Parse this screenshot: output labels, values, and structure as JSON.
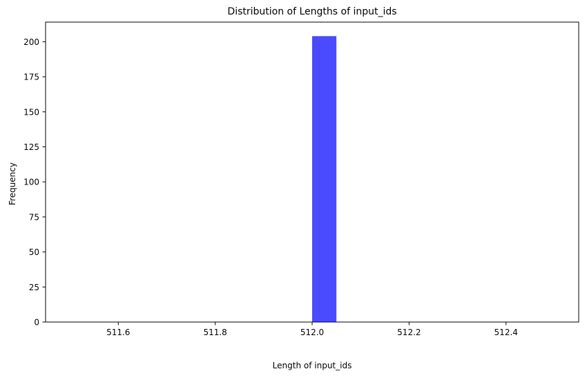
{
  "chart_data": {
    "type": "bar",
    "title": "Distribution of Lengths of input_ids",
    "xlabel": "Length of input_ids",
    "ylabel": "Frequency",
    "xlim": [
      511.45,
      512.55
    ],
    "ylim": [
      0,
      214
    ],
    "bins": [
      {
        "x_start": 512.0,
        "x_end": 512.05,
        "count": 204
      }
    ],
    "bar_color": "#4a4aff",
    "x_ticks": [
      {
        "value": 511.6,
        "label": "511.6"
      },
      {
        "value": 511.8,
        "label": "511.8"
      },
      {
        "value": 512.0,
        "label": "512.0"
      },
      {
        "value": 512.2,
        "label": "512.2"
      },
      {
        "value": 512.4,
        "label": "512.4"
      }
    ],
    "y_ticks": [
      {
        "value": 0,
        "label": "0"
      },
      {
        "value": 25,
        "label": "25"
      },
      {
        "value": 50,
        "label": "50"
      },
      {
        "value": 75,
        "label": "75"
      },
      {
        "value": 100,
        "label": "100"
      },
      {
        "value": 125,
        "label": "125"
      },
      {
        "value": 150,
        "label": "150"
      },
      {
        "value": 175,
        "label": "175"
      },
      {
        "value": 200,
        "label": "200"
      }
    ],
    "grid": false,
    "legend": "none"
  }
}
